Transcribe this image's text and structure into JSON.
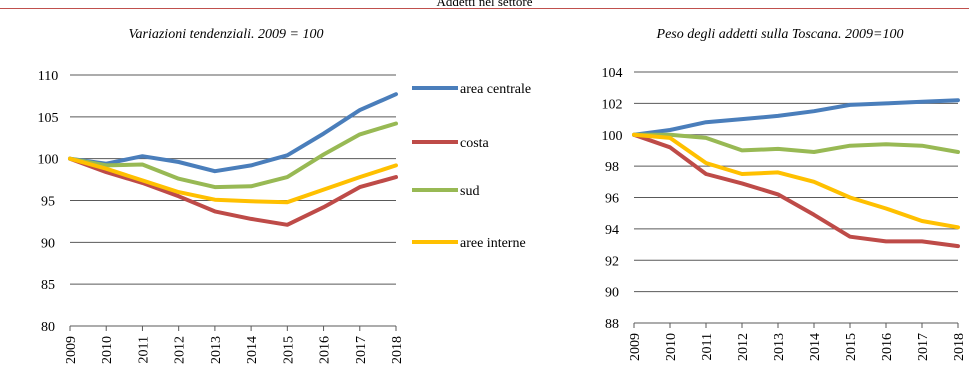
{
  "header": {
    "title": "Addetti nel settore"
  },
  "colors": {
    "area centrale": "#4a7ebb",
    "costa": "#be4b48",
    "sud": "#98b954",
    "aree interne": "#ffc000",
    "grid": "#595959",
    "rule": "#c0504d"
  },
  "legend": [
    "area centrale",
    "costa",
    "sud",
    "aree interne"
  ],
  "chart_data": [
    {
      "type": "line",
      "title": "Variazioni tendenziali. 2009 = 100",
      "x": [
        "2009",
        "2010",
        "2011",
        "2012",
        "2013",
        "2014",
        "2015",
        "2016",
        "2017",
        "2018"
      ],
      "ylim": [
        80,
        110
      ],
      "yticks": [
        80,
        85,
        90,
        95,
        100,
        105,
        110
      ],
      "grid": true,
      "legend_position": "right",
      "series": [
        {
          "name": "area centrale",
          "values": [
            100,
            99.4,
            100.3,
            99.6,
            98.5,
            99.2,
            100.4,
            103.0,
            105.8,
            107.7
          ]
        },
        {
          "name": "costa",
          "values": [
            100,
            98.4,
            97.1,
            95.5,
            93.7,
            92.8,
            92.1,
            94.2,
            96.6,
            97.8
          ]
        },
        {
          "name": "sud",
          "values": [
            100,
            99.2,
            99.3,
            97.6,
            96.6,
            96.7,
            97.8,
            100.5,
            102.9,
            104.2
          ]
        },
        {
          "name": "aree interne",
          "values": [
            100,
            98.8,
            97.4,
            96.0,
            95.1,
            94.9,
            94.8,
            96.3,
            97.8,
            99.2
          ]
        }
      ]
    },
    {
      "type": "line",
      "title": "Peso degli addetti sulla Toscana. 2009=100",
      "x": [
        "2009",
        "2010",
        "2011",
        "2012",
        "2013",
        "2014",
        "2015",
        "2016",
        "2017",
        "2018"
      ],
      "ylim": [
        88,
        104
      ],
      "yticks": [
        88,
        90,
        92,
        94,
        96,
        98,
        100,
        102,
        104
      ],
      "grid": true,
      "series": [
        {
          "name": "area centrale",
          "values": [
            100,
            100.3,
            100.8,
            101.0,
            101.2,
            101.5,
            101.9,
            102.0,
            102.1,
            102.2
          ]
        },
        {
          "name": "costa",
          "values": [
            100,
            99.2,
            97.5,
            96.9,
            96.2,
            94.9,
            93.5,
            93.2,
            93.2,
            92.9
          ]
        },
        {
          "name": "sud",
          "values": [
            100,
            100.0,
            99.8,
            99.0,
            99.1,
            98.9,
            99.3,
            99.4,
            99.3,
            98.9
          ]
        },
        {
          "name": "aree interne",
          "values": [
            100,
            99.8,
            98.2,
            97.5,
            97.6,
            97.0,
            96.0,
            95.3,
            94.5,
            94.1
          ]
        }
      ]
    }
  ]
}
